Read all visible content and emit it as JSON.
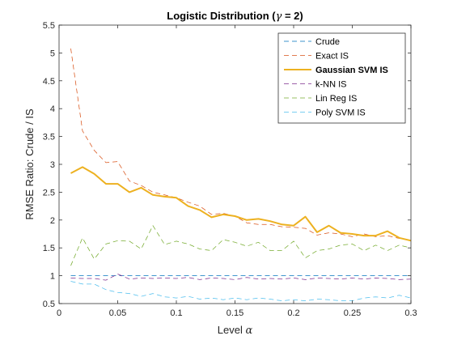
{
  "chart_data": {
    "type": "line",
    "title": "Logistic Distribution (",
    "title_symbol": "γ",
    "title_suffix": " = 2)",
    "xlabel": "Level ",
    "xlabel_symbol": "α",
    "ylabel": "RMSE Ratio: Crude / IS",
    "xlim": [
      0,
      0.3
    ],
    "ylim": [
      0.5,
      5.5
    ],
    "x_ticks": [
      0,
      0.05,
      0.1,
      0.15,
      0.2,
      0.25,
      0.3
    ],
    "x_tick_labels": [
      "0",
      "0.05",
      "0.1",
      "0.15",
      "0.2",
      "0.25",
      "0.3"
    ],
    "y_ticks": [
      0.5,
      1,
      1.5,
      2,
      2.5,
      3,
      3.5,
      4,
      4.5,
      5,
      5.5
    ],
    "y_tick_labels": [
      "0.5",
      "1",
      "1.5",
      "2",
      "2.5",
      "3",
      "3.5",
      "4",
      "4.5",
      "5",
      "5.5"
    ],
    "grid": false,
    "legend_position": "top-right",
    "x": [
      0.01,
      0.02,
      0.03,
      0.04,
      0.05,
      0.06,
      0.07,
      0.08,
      0.09,
      0.1,
      0.11,
      0.12,
      0.13,
      0.14,
      0.15,
      0.16,
      0.17,
      0.18,
      0.19,
      0.2,
      0.21,
      0.22,
      0.23,
      0.24,
      0.25,
      0.26,
      0.27,
      0.28,
      0.29,
      0.3
    ],
    "series": [
      {
        "name": "Crude",
        "color": "#0072BD",
        "dash": "dashed",
        "bold": false,
        "values": [
          1,
          1,
          1,
          1,
          1,
          1,
          1,
          1,
          1,
          1,
          1,
          1,
          1,
          1,
          1,
          1,
          1,
          1,
          1,
          1,
          1,
          1,
          1,
          1,
          1,
          1,
          1,
          1,
          1,
          1
        ]
      },
      {
        "name": "Exact IS",
        "color": "#D95319",
        "dash": "dashed",
        "bold": false,
        "values": [
          5.08,
          3.6,
          3.25,
          3.03,
          3.05,
          2.7,
          2.62,
          2.5,
          2.45,
          2.4,
          2.32,
          2.25,
          2.1,
          2.12,
          2.07,
          1.95,
          1.92,
          1.92,
          1.88,
          1.87,
          1.85,
          1.73,
          1.77,
          1.75,
          1.7,
          1.75,
          1.7,
          1.72,
          1.67,
          1.64
        ]
      },
      {
        "name": "Gaussian SVM IS",
        "color": "#EDB120",
        "dash": "solid",
        "bold": true,
        "values": [
          2.84,
          2.95,
          2.83,
          2.65,
          2.65,
          2.5,
          2.58,
          2.45,
          2.42,
          2.4,
          2.25,
          2.18,
          2.05,
          2.1,
          2.07,
          2.0,
          2.02,
          1.98,
          1.92,
          1.9,
          2.06,
          1.78,
          1.9,
          1.77,
          1.75,
          1.72,
          1.72,
          1.8,
          1.68,
          1.63
        ]
      },
      {
        "name": "k-NN IS",
        "color": "#7E2F8E",
        "dash": "dashed",
        "bold": false,
        "values": [
          0.96,
          0.95,
          0.95,
          0.92,
          1.03,
          0.94,
          0.96,
          0.95,
          0.96,
          0.95,
          0.97,
          0.93,
          0.96,
          0.95,
          0.93,
          0.97,
          0.94,
          0.95,
          0.94,
          0.96,
          0.93,
          0.96,
          0.95,
          0.94,
          0.96,
          0.94,
          0.96,
          0.95,
          0.93,
          0.94
        ]
      },
      {
        "name": "Lin Reg IS",
        "color": "#77AC30",
        "dash": "dashed",
        "bold": false,
        "values": [
          1.18,
          1.68,
          1.3,
          1.57,
          1.63,
          1.62,
          1.48,
          1.9,
          1.56,
          1.62,
          1.57,
          1.48,
          1.45,
          1.65,
          1.6,
          1.53,
          1.6,
          1.45,
          1.45,
          1.62,
          1.32,
          1.45,
          1.48,
          1.55,
          1.57,
          1.45,
          1.55,
          1.45,
          1.55,
          1.5
        ]
      },
      {
        "name": "Poly SVM IS",
        "color": "#4DBEEE",
        "dash": "dashed",
        "bold": false,
        "values": [
          0.9,
          0.85,
          0.85,
          0.75,
          0.7,
          0.68,
          0.63,
          0.68,
          0.62,
          0.6,
          0.63,
          0.58,
          0.6,
          0.57,
          0.6,
          0.57,
          0.6,
          0.58,
          0.55,
          0.57,
          0.55,
          0.58,
          0.57,
          0.55,
          0.55,
          0.6,
          0.62,
          0.6,
          0.65,
          0.6
        ]
      }
    ]
  }
}
